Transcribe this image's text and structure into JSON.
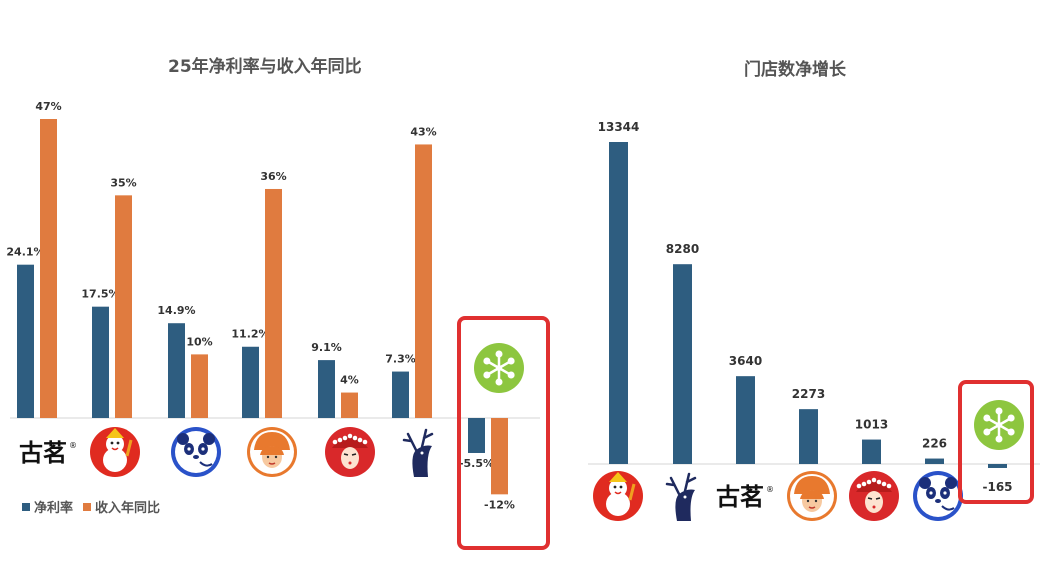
{
  "colors": {
    "net_margin": "#2e5d80",
    "revenue_yoy": "#e07b3f",
    "highlight": "#e03030"
  },
  "legend": {
    "net_margin": "净利率",
    "revenue_yoy": "收入年同比"
  },
  "brands": {
    "gm_text": "古茗",
    "gm_reg": "®"
  },
  "chart_data": [
    {
      "type": "bar",
      "title": "25年净利率与收入年同比",
      "categories": [
        "古茗",
        "mixue-logo",
        "panda-logo",
        "girl-logo",
        "opera-logo",
        "deer-logo",
        "green-logo"
      ],
      "series": [
        {
          "name": "净利率",
          "values": [
            24.1,
            17.5,
            14.9,
            11.2,
            9.1,
            7.3,
            -5.5
          ],
          "labels": [
            "24.1%",
            "17.5%",
            "14.9%",
            "11.2%",
            "9.1%",
            "7.3%",
            "-5.5%"
          ]
        },
        {
          "name": "收入年同比",
          "values": [
            47,
            35,
            10,
            36,
            4,
            43,
            -12
          ],
          "labels": [
            "47%",
            "35%",
            "10%",
            "36%",
            "4%",
            "43%",
            "-12%"
          ]
        }
      ],
      "legend_position": "bottom-left",
      "highlighted_category_index": 6
    },
    {
      "type": "bar",
      "title": "门店数净增长",
      "categories": [
        "mixue-logo",
        "deer-logo",
        "古茗",
        "girl-logo",
        "opera-logo",
        "panda-logo",
        "green-logo"
      ],
      "values": [
        13344,
        8280,
        3640,
        2273,
        1013,
        226,
        -165
      ],
      "labels": [
        "13344",
        "8280",
        "3640",
        "2273",
        "1013",
        "226",
        "-165"
      ],
      "highlighted_category_index": 6
    }
  ]
}
